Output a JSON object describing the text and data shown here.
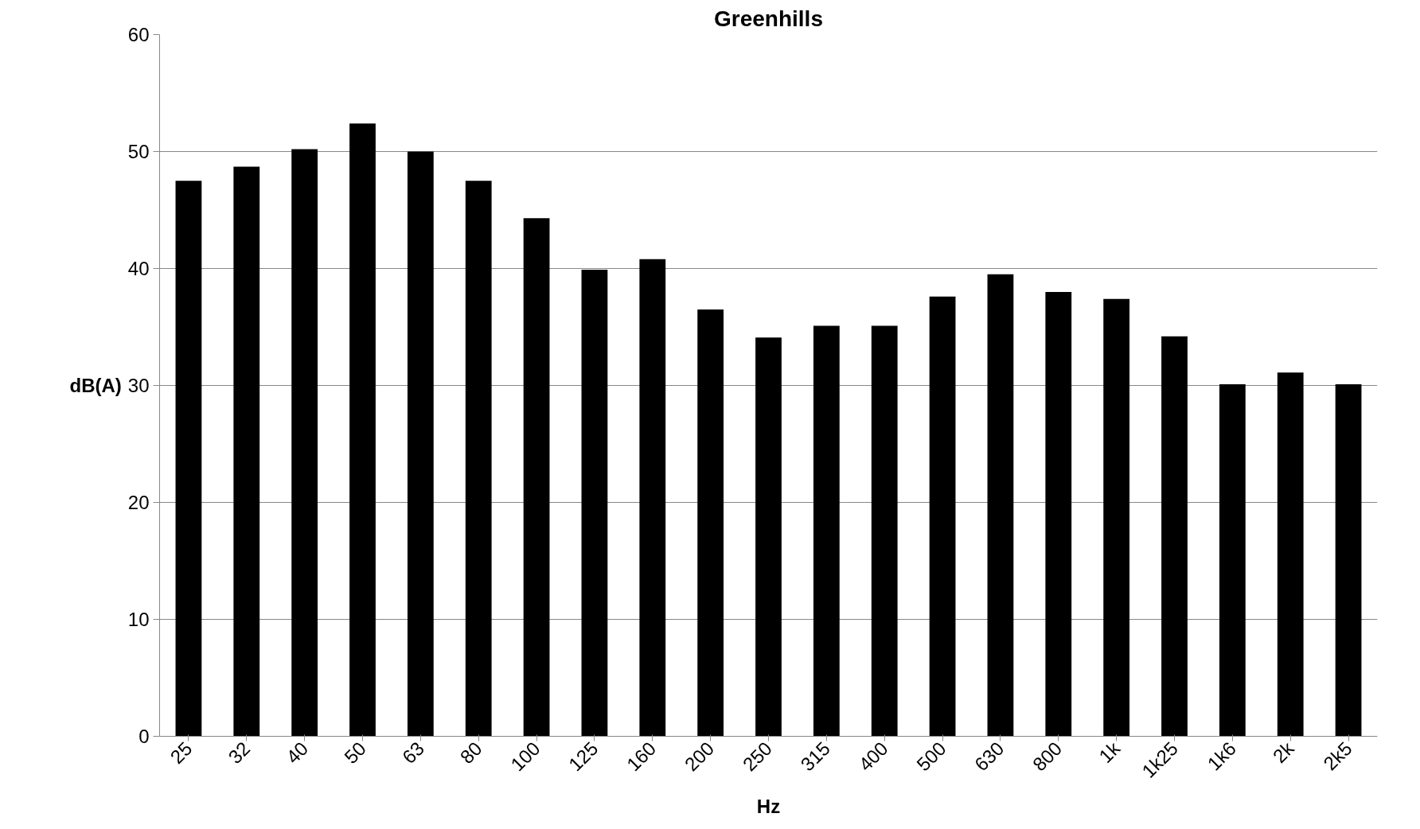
{
  "chart_data": {
    "type": "bar",
    "title": "Greenhills",
    "xlabel": "Hz",
    "ylabel": "dB(A)",
    "categories": [
      "25",
      "32",
      "40",
      "50",
      "63",
      "80",
      "100",
      "125",
      "160",
      "200",
      "250",
      "315",
      "400",
      "500",
      "630",
      "800",
      "1k",
      "1k25",
      "1k6",
      "2k",
      "2k5"
    ],
    "values": [
      47.5,
      48.7,
      50.2,
      52.4,
      50.0,
      47.5,
      44.3,
      39.9,
      40.8,
      36.5,
      34.1,
      35.1,
      35.1,
      37.6,
      39.5,
      38.0,
      37.4,
      34.2,
      30.1,
      31.1,
      30.1
    ],
    "color": "#000000",
    "ylim": [
      0,
      60
    ],
    "yticks": [
      0,
      10,
      20,
      30,
      40,
      50,
      60
    ],
    "grid": "y"
  }
}
